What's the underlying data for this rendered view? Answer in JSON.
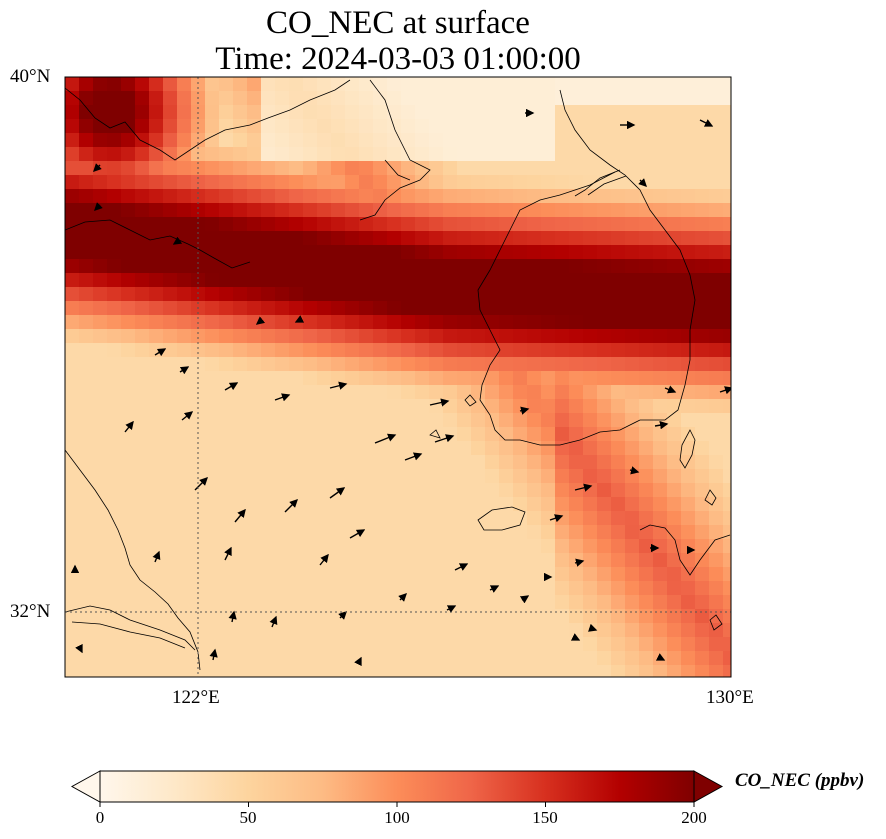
{
  "title": {
    "line1": "CO_NEC at surface",
    "line2": "Time: 2024-03-03 01:00:00"
  },
  "axes": {
    "lat_labels": [
      "40°N",
      "32°N"
    ],
    "lon_labels": [
      "122°E",
      "130°E"
    ]
  },
  "map": {
    "variable": "CO_NEC",
    "level": "surface",
    "extent": {
      "lon_min": 120,
      "lon_max": 130,
      "lat_min": 31,
      "lat_max": 40
    },
    "gridlines": {
      "lons": [
        122,
        130
      ],
      "lats": [
        32,
        40
      ]
    },
    "plume_band": "high CO_NEC band (>200 ppbv) from northwest interior across the Yellow Sea toward the Korean peninsula",
    "wind_vectors": "shown"
  },
  "colorbar": {
    "label": "CO_NEC (ppbv)",
    "ticks": [
      "0",
      "50",
      "100",
      "150",
      "200"
    ],
    "min": 0,
    "max": 200,
    "extend": "both",
    "colormap": "OrRd",
    "colors": [
      "#fff7ec",
      "#fee8c8",
      "#fdd49e",
      "#fdbb84",
      "#fc8d59",
      "#ef6548",
      "#d7301f",
      "#b30000",
      "#7f0000"
    ]
  }
}
